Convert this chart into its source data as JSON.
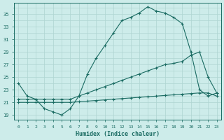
{
  "xlabel": "Humidex (Indice chaleur)",
  "background_color": "#cdecea",
  "grid_color": "#aed4d1",
  "line_color": "#1a6b62",
  "x_ticks": [
    0,
    1,
    2,
    3,
    4,
    5,
    6,
    7,
    8,
    9,
    10,
    11,
    12,
    13,
    14,
    15,
    16,
    17,
    18,
    19,
    20,
    21,
    22,
    23
  ],
  "y_ticks": [
    19,
    21,
    23,
    25,
    27,
    29,
    31,
    33,
    35
  ],
  "xlim": [
    -0.5,
    23.5
  ],
  "ylim": [
    18.2,
    36.8
  ],
  "line1_x": [
    0,
    1,
    2,
    3,
    4,
    5,
    6,
    7,
    8,
    9,
    10,
    11,
    12,
    13,
    14,
    15,
    16,
    17,
    18,
    19,
    20,
    21,
    22,
    23
  ],
  "line1_y": [
    24,
    22,
    21.5,
    20,
    19.5,
    19,
    20,
    22,
    25.5,
    28,
    30,
    32,
    34,
    34.5,
    35.2,
    36.2,
    35.5,
    35.2,
    34.5,
    33.5,
    29,
    23,
    22,
    22.5
  ],
  "line2_x": [
    0,
    1,
    2,
    3,
    4,
    5,
    6,
    7,
    8,
    9,
    10,
    11,
    12,
    13,
    14,
    15,
    16,
    17,
    18,
    19,
    20,
    21,
    22,
    23
  ],
  "line2_y": [
    21.5,
    21.5,
    21.5,
    21.5,
    21.5,
    21.5,
    21.5,
    22,
    22.5,
    23,
    23.5,
    24,
    24.5,
    25,
    25.5,
    26,
    26.5,
    27,
    27.2,
    27.5,
    28.5,
    29,
    25,
    22.5
  ],
  "line3_x": [
    0,
    1,
    2,
    3,
    4,
    5,
    6,
    7,
    8,
    9,
    10,
    11,
    12,
    13,
    14,
    15,
    16,
    17,
    18,
    19,
    20,
    21,
    22,
    23
  ],
  "line3_y": [
    21,
    21,
    21,
    21,
    21,
    21,
    21,
    21.1,
    21.2,
    21.3,
    21.4,
    21.5,
    21.6,
    21.7,
    21.8,
    21.9,
    22.0,
    22.1,
    22.2,
    22.3,
    22.4,
    22.5,
    22.5,
    22.0
  ]
}
